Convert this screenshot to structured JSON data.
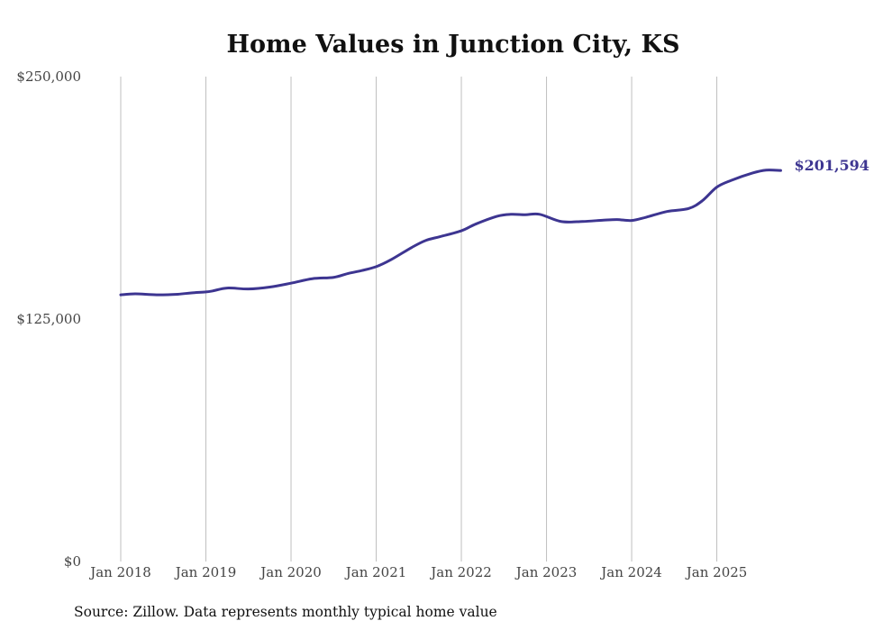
{
  "chart_data": {
    "type": "line",
    "title": "Home Values in Junction City, KS",
    "xlabel": "",
    "ylabel": "",
    "ylim": [
      0,
      250000
    ],
    "y_ticks": [
      {
        "value": 0,
        "label": "$0"
      },
      {
        "value": 125000,
        "label": "$125,000"
      },
      {
        "value": 250000,
        "label": "$250,000"
      }
    ],
    "x_ticks": [
      {
        "value": 2018,
        "label": "Jan 2018"
      },
      {
        "value": 2019,
        "label": "Jan 2019"
      },
      {
        "value": 2020,
        "label": "Jan 2020"
      },
      {
        "value": 2021,
        "label": "Jan 2021"
      },
      {
        "value": 2022,
        "label": "Jan 2022"
      },
      {
        "value": 2023,
        "label": "Jan 2023"
      },
      {
        "value": 2024,
        "label": "Jan 2024"
      },
      {
        "value": 2025,
        "label": "Jan 2025"
      }
    ],
    "xlim": [
      2018,
      2025.83
    ],
    "grid": "vertical",
    "series": [
      {
        "name": "Typical home value",
        "color": "#3d3591",
        "x": [
          2018,
          2018.17,
          2018.42,
          2018.67,
          2018.83,
          2019,
          2019.08,
          2019.25,
          2019.5,
          2019.75,
          2020,
          2020.25,
          2020.5,
          2020.67,
          2020.83,
          2021,
          2021.17,
          2021.42,
          2021.58,
          2021.75,
          2022,
          2022.17,
          2022.42,
          2022.58,
          2022.75,
          2022.92,
          2023.17,
          2023.42,
          2023.67,
          2023.83,
          2024,
          2024.17,
          2024.42,
          2024.67,
          2024.83,
          2025,
          2025.17,
          2025.42,
          2025.58,
          2025.75
        ],
        "values": [
          137500,
          138000,
          137500,
          137800,
          138500,
          139000,
          139500,
          141000,
          140500,
          141500,
          143500,
          145800,
          146500,
          148500,
          150000,
          152000,
          155500,
          162000,
          165500,
          167500,
          170500,
          174000,
          178000,
          179000,
          178800,
          179000,
          175300,
          175300,
          176000,
          176300,
          175800,
          177500,
          180500,
          182000,
          186000,
          193000,
          196500,
          200300,
          201800,
          201594
        ]
      }
    ],
    "end_label": "$201,594",
    "source": "Source: Zillow. Data represents monthly typical home value"
  }
}
